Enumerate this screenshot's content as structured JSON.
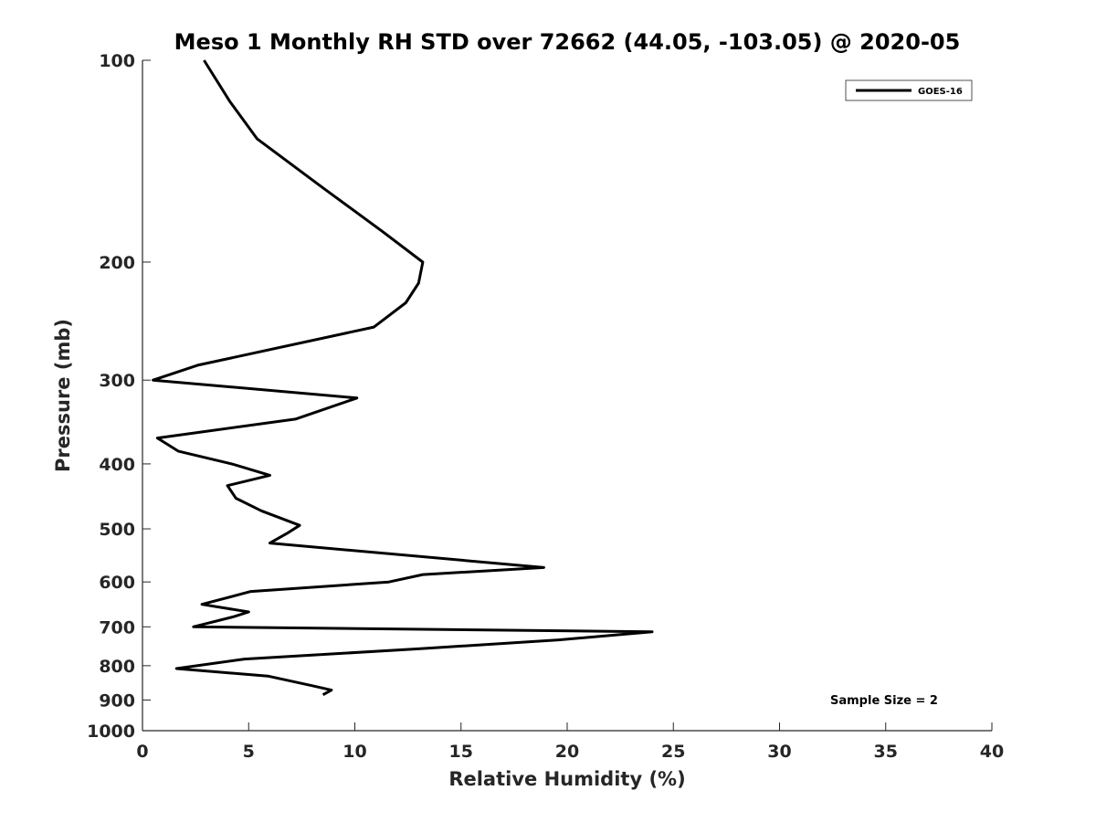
{
  "chart_data": {
    "type": "line",
    "title": "Meso 1 Monthly RH STD over 72662 (44.05, -103.05) @ 2020-05",
    "xlabel": "Relative Humidity (%)",
    "ylabel": "Pressure (mb)",
    "xlim": [
      0,
      40
    ],
    "ylim": [
      100,
      1000
    ],
    "yscale": "log",
    "y_reversed": true,
    "grid": false,
    "legend_position": "top-right",
    "x_ticks": [
      "0",
      "5",
      "10",
      "15",
      "20",
      "25",
      "30",
      "35",
      "40"
    ],
    "y_ticks": [
      "100",
      "200",
      "300",
      "400",
      "500",
      "600",
      "700",
      "800",
      "900",
      "1000"
    ],
    "annotation": "Sample Size = 2",
    "series": [
      {
        "name": "GOES-16",
        "color": "#000000",
        "points": [
          [
            2.9,
            100
          ],
          [
            4.1,
            115
          ],
          [
            5.4,
            131
          ],
          [
            8.5,
            155
          ],
          [
            11.3,
            180
          ],
          [
            13.2,
            200
          ],
          [
            13.0,
            215
          ],
          [
            12.4,
            230
          ],
          [
            10.9,
            250
          ],
          [
            2.6,
            285
          ],
          [
            0.5,
            300
          ],
          [
            10.1,
            319
          ],
          [
            7.2,
            343
          ],
          [
            0.7,
            366
          ],
          [
            1.7,
            383
          ],
          [
            4.2,
            400
          ],
          [
            6.0,
            416
          ],
          [
            4.0,
            431
          ],
          [
            4.4,
            450
          ],
          [
            5.6,
            470
          ],
          [
            7.4,
            494
          ],
          [
            6.8,
            508
          ],
          [
            6.0,
            525
          ],
          [
            18.9,
            571
          ],
          [
            13.2,
            585
          ],
          [
            11.6,
            600
          ],
          [
            5.1,
            620
          ],
          [
            2.8,
            648
          ],
          [
            5.0,
            665
          ],
          [
            4.3,
            676
          ],
          [
            2.4,
            700
          ],
          [
            24.0,
            712
          ],
          [
            19.6,
            732
          ],
          [
            13.0,
            755
          ],
          [
            4.8,
            782
          ],
          [
            1.6,
            808
          ],
          [
            5.9,
            829
          ],
          [
            8.0,
            857
          ],
          [
            8.9,
            870
          ],
          [
            8.5,
            884
          ]
        ]
      }
    ]
  }
}
